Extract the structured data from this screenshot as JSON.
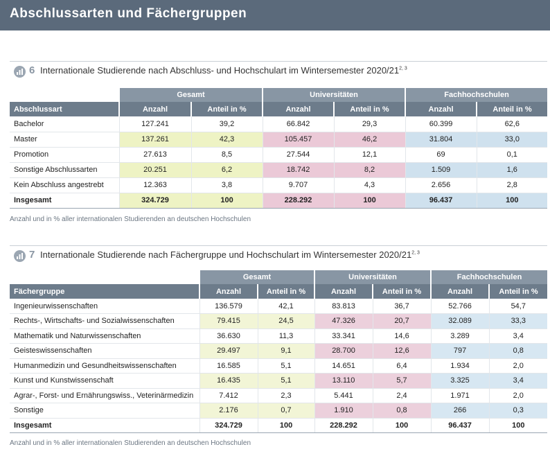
{
  "page_title": "Abschlussarten und Fächergruppen",
  "section1": {
    "number": "6",
    "title": "Internationale Studierende nach Abschluss- und Hochschulart im Wintersemester 2020/21",
    "title_sup": "2, 3",
    "group_headers": [
      "Gesamt",
      "Universitäten",
      "Fachhochschulen"
    ],
    "col_headers": [
      "Abschlussart",
      "Anzahl",
      "Anteil in %",
      "Anzahl",
      "Anteil in %",
      "Anzahl",
      "Anteil in %"
    ],
    "rows": [
      [
        "Bachelor",
        "127.241",
        "39,2",
        "66.842",
        "29,3",
        "60.399",
        "62,6"
      ],
      [
        "Master",
        "137.261",
        "42,3",
        "105.457",
        "46,2",
        "31.804",
        "33,0"
      ],
      [
        "Promotion",
        "27.613",
        "8,5",
        "27.544",
        "12,1",
        "69",
        "0,1"
      ],
      [
        "Sonstige Abschlussarten",
        "20.251",
        "6,2",
        "18.742",
        "8,2",
        "1.509",
        "1,6"
      ],
      [
        "Kein Abschluss angestrebt",
        "12.363",
        "3,8",
        "9.707",
        "4,3",
        "2.656",
        "2,8"
      ]
    ],
    "total": [
      "Insgesamt",
      "324.729",
      "100",
      "228.292",
      "100",
      "96.437",
      "100"
    ],
    "note": "Anzahl und in % aller internationalen Studierenden an deutschen Hochschulen"
  },
  "section2": {
    "number": "7",
    "title": "Internationale Studierende nach Fächergruppe und Hochschulart im Wintersemester 2020/21",
    "title_sup": "2, 3",
    "group_headers": [
      "Gesamt",
      "Universitäten",
      "Fachhochschulen"
    ],
    "col_headers": [
      "Fächergruppe",
      "Anzahl",
      "Anteil in %",
      "Anzahl",
      "Anteil in %",
      "Anzahl",
      "Anteil in %"
    ],
    "rows": [
      [
        "Ingenieurwissenschaften",
        "136.579",
        "42,1",
        "83.813",
        "36,7",
        "52.766",
        "54,7"
      ],
      [
        "Rechts-, Wirtschafts- und Sozialwissenschaften",
        "79.415",
        "24,5",
        "47.326",
        "20,7",
        "32.089",
        "33,3"
      ],
      [
        "Mathematik und Naturwissenschaften",
        "36.630",
        "11,3",
        "33.341",
        "14,6",
        "3.289",
        "3,4"
      ],
      [
        "Geisteswissenschaften",
        "29.497",
        "9,1",
        "28.700",
        "12,6",
        "797",
        "0,8"
      ],
      [
        "Humanmedizin und Gesundheitswissenschaften",
        "16.585",
        "5,1",
        "14.651",
        "6,4",
        "1.934",
        "2,0"
      ],
      [
        "Kunst und Kunstwissenschaft",
        "16.435",
        "5,1",
        "13.110",
        "5,7",
        "3.325",
        "3,4"
      ],
      [
        "Agrar-, Forst- und Ernährungswiss., Veterinärmedizin",
        "7.412",
        "2,3",
        "5.441",
        "2,4",
        "1.971",
        "2,0"
      ],
      [
        "Sonstige",
        "2.176",
        "0,7",
        "1.910",
        "0,8",
        "266",
        "0,3"
      ]
    ],
    "total": [
      "Insgesamt",
      "324.729",
      "100",
      "228.292",
      "100",
      "96.437",
      "100"
    ],
    "note": "Anzahl und in % aller internationalen Studierenden an deutschen Hochschulen"
  }
}
